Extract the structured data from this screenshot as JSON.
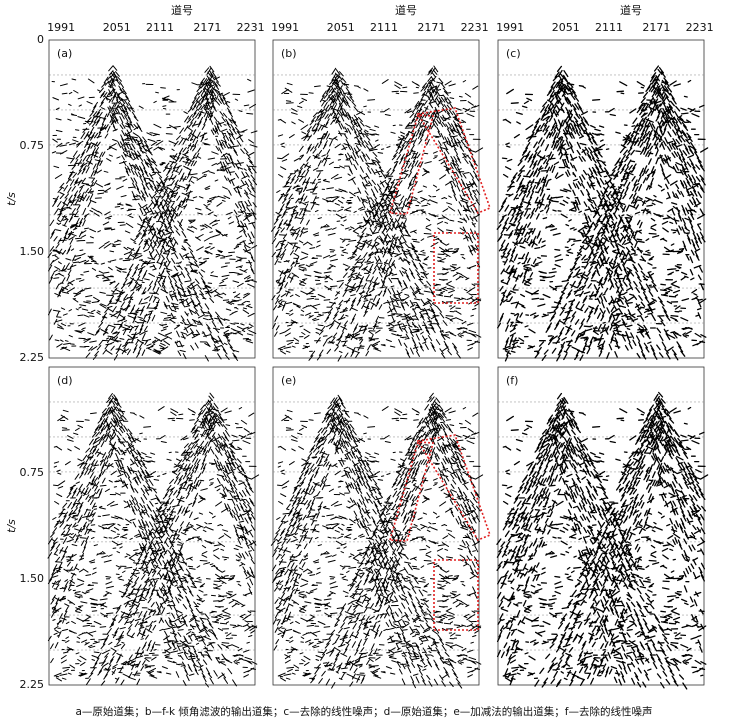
{
  "header": {
    "axis_title": "道号",
    "traces": [
      "1991",
      "2051",
      "2111",
      "2171",
      "2231"
    ]
  },
  "y_axis": {
    "title": "t/s",
    "ticks": [
      "0",
      "0.75",
      "1.50",
      "2.25"
    ]
  },
  "panels": [
    {
      "label": "(a)"
    },
    {
      "label": "(b)"
    },
    {
      "label": "(c)"
    },
    {
      "label": "(d)"
    },
    {
      "label": "(e)"
    },
    {
      "label": "(f)"
    }
  ],
  "caption": "a—原始道集；b—f-k 倾角滤波的输出道集；c—去除的线性噪声；d—原始道集；e—加减法的输出道集；f—去除的线性噪声"
}
